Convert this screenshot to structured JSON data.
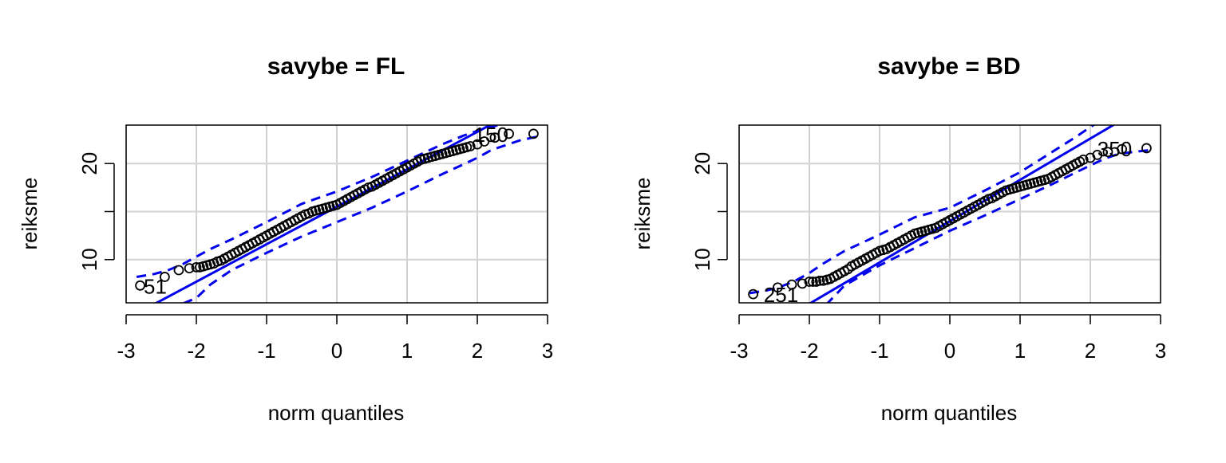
{
  "chart_data": [
    {
      "type": "scatter",
      "subtype": "qq-plot",
      "title": "savybe = FL",
      "xlabel": "norm quantiles",
      "ylabel": "reiksme",
      "xlim": [
        -3,
        3
      ],
      "ylim": [
        5.5,
        24
      ],
      "x_ticks": [
        "-3",
        "-2",
        "-1",
        "0",
        "1",
        "2",
        "3"
      ],
      "y_ticks": [
        "10",
        "20"
      ],
      "grid": true,
      "reference_line": {
        "intercept": 15.5,
        "slope": 3.9
      },
      "envelope": {
        "x": [
          -2.85,
          -2.6,
          -2.4,
          -2.2,
          -2.0,
          -1.8,
          -1.5,
          -1.0,
          -0.5,
          0.0,
          0.5,
          1.0,
          1.5,
          1.8,
          2.0,
          2.2,
          2.4,
          2.6,
          2.85
        ],
        "upper": [
          8.2,
          8.5,
          8.9,
          9.5,
          10.3,
          11.1,
          12.1,
          13.9,
          15.8,
          17.1,
          18.6,
          20.3,
          22.0,
          22.9,
          23.4,
          23.8,
          24.2,
          24.6,
          25.0
        ],
        "lower": [
          5.4,
          5.0,
          4.9,
          5.4,
          6.0,
          7.4,
          8.9,
          10.7,
          12.4,
          13.9,
          15.4,
          17.1,
          18.9,
          19.9,
          20.6,
          21.4,
          21.9,
          22.4,
          22.8
        ]
      },
      "points": {
        "x": [
          -2.8,
          -2.45,
          -2.25,
          -2.1,
          -2.0,
          -1.95,
          -1.9,
          -1.85,
          -1.8,
          -1.75,
          -1.7,
          -1.65,
          -1.6,
          -1.55,
          -1.5,
          -1.45,
          -1.4,
          -1.35,
          -1.3,
          -1.25,
          -1.2,
          -1.15,
          -1.1,
          -1.05,
          -1.0,
          -0.95,
          -0.9,
          -0.85,
          -0.8,
          -0.75,
          -0.7,
          -0.65,
          -0.6,
          -0.55,
          -0.5,
          -0.45,
          -0.4,
          -0.35,
          -0.3,
          -0.25,
          -0.2,
          -0.15,
          -0.1,
          -0.05,
          0.0,
          0.05,
          0.1,
          0.15,
          0.2,
          0.25,
          0.3,
          0.35,
          0.4,
          0.45,
          0.5,
          0.55,
          0.6,
          0.65,
          0.7,
          0.75,
          0.8,
          0.85,
          0.9,
          0.95,
          1.0,
          1.05,
          1.1,
          1.15,
          1.2,
          1.25,
          1.3,
          1.35,
          1.4,
          1.45,
          1.5,
          1.55,
          1.6,
          1.65,
          1.7,
          1.75,
          1.8,
          1.85,
          1.9,
          2.0,
          2.1,
          2.25,
          2.45,
          2.8
        ],
        "y": [
          7.3,
          8.2,
          8.9,
          9.1,
          9.2,
          9.2,
          9.3,
          9.4,
          9.5,
          9.6,
          9.8,
          9.9,
          10.1,
          10.3,
          10.5,
          10.7,
          10.9,
          11.1,
          11.3,
          11.5,
          11.7,
          11.9,
          12.1,
          12.3,
          12.5,
          12.7,
          12.9,
          13.1,
          13.3,
          13.5,
          13.7,
          13.9,
          14.1,
          14.3,
          14.5,
          14.7,
          14.8,
          15.0,
          15.1,
          15.2,
          15.3,
          15.4,
          15.5,
          15.6,
          15.7,
          15.9,
          16.1,
          16.3,
          16.5,
          16.7,
          16.9,
          17.1,
          17.3,
          17.5,
          17.6,
          17.8,
          18.0,
          18.2,
          18.4,
          18.6,
          18.8,
          19.0,
          19.2,
          19.4,
          19.6,
          19.8,
          20.0,
          20.2,
          20.4,
          20.5,
          20.6,
          20.7,
          20.8,
          20.9,
          21.0,
          21.1,
          21.2,
          21.3,
          21.4,
          21.5,
          21.6,
          21.7,
          21.8,
          22.0,
          22.3,
          22.7,
          23.1,
          23.1
        ]
      },
      "annotations": [
        {
          "text": "51",
          "x": -2.75,
          "y": 7.3
        },
        {
          "text": "150",
          "x": 1.95,
          "y": 23.1
        }
      ]
    },
    {
      "type": "scatter",
      "subtype": "qq-plot",
      "title": "savybe = BD",
      "xlabel": "norm quantiles",
      "ylabel": "reiksme",
      "xlim": [
        -3,
        3
      ],
      "ylim": [
        5.5,
        24
      ],
      "x_ticks": [
        "-3",
        "-2",
        "-1",
        "0",
        "1",
        "2",
        "3"
      ],
      "y_ticks": [
        "10",
        "20"
      ],
      "grid": true,
      "reference_line": {
        "intercept": 14.0,
        "slope": 4.3
      },
      "envelope": {
        "x": [
          -2.85,
          -2.6,
          -2.4,
          -2.2,
          -2.0,
          -1.8,
          -1.5,
          -1.0,
          -0.5,
          0.0,
          0.5,
          1.0,
          1.5,
          1.8,
          2.0,
          2.2,
          2.4,
          2.6,
          2.85
        ],
        "upper": [
          6.5,
          6.8,
          7.2,
          7.8,
          8.6,
          9.6,
          10.9,
          12.6,
          14.4,
          15.4,
          17.2,
          19.1,
          21.4,
          22.8,
          23.8,
          24.7,
          25.6,
          26.5,
          27.6
        ],
        "lower": [
          4.4,
          3.9,
          3.8,
          4.2,
          4.6,
          5.0,
          7.3,
          9.4,
          11.2,
          13.0,
          14.6,
          16.3,
          18.0,
          19.1,
          19.8,
          20.5,
          21.0,
          21.2,
          21.4
        ]
      },
      "points": {
        "x": [
          -2.8,
          -2.45,
          -2.25,
          -2.1,
          -2.0,
          -1.95,
          -1.9,
          -1.85,
          -1.8,
          -1.75,
          -1.7,
          -1.65,
          -1.6,
          -1.55,
          -1.5,
          -1.45,
          -1.4,
          -1.35,
          -1.3,
          -1.25,
          -1.2,
          -1.15,
          -1.1,
          -1.05,
          -1.0,
          -0.95,
          -0.9,
          -0.85,
          -0.8,
          -0.75,
          -0.7,
          -0.65,
          -0.6,
          -0.55,
          -0.5,
          -0.45,
          -0.4,
          -0.35,
          -0.3,
          -0.25,
          -0.2,
          -0.15,
          -0.1,
          -0.05,
          0.0,
          0.05,
          0.1,
          0.15,
          0.2,
          0.25,
          0.3,
          0.35,
          0.4,
          0.45,
          0.5,
          0.55,
          0.6,
          0.65,
          0.7,
          0.75,
          0.8,
          0.85,
          0.9,
          0.95,
          1.0,
          1.05,
          1.1,
          1.15,
          1.2,
          1.25,
          1.3,
          1.35,
          1.4,
          1.45,
          1.5,
          1.55,
          1.6,
          1.65,
          1.7,
          1.75,
          1.8,
          1.85,
          1.9,
          2.0,
          2.1,
          2.25,
          2.45,
          2.8
        ],
        "y": [
          6.4,
          7.1,
          7.4,
          7.5,
          7.7,
          7.7,
          7.7,
          7.8,
          7.8,
          7.9,
          8.0,
          8.2,
          8.4,
          8.6,
          8.8,
          9.0,
          9.3,
          9.5,
          9.7,
          9.9,
          10.1,
          10.3,
          10.5,
          10.7,
          10.9,
          11.0,
          11.1,
          11.3,
          11.5,
          11.7,
          11.9,
          12.1,
          12.3,
          12.5,
          12.7,
          12.8,
          12.9,
          13.0,
          13.1,
          13.2,
          13.3,
          13.5,
          13.7,
          13.9,
          14.1,
          14.3,
          14.5,
          14.7,
          14.9,
          15.1,
          15.3,
          15.5,
          15.7,
          15.9,
          16.1,
          16.3,
          16.4,
          16.6,
          16.8,
          17.0,
          17.2,
          17.3,
          17.4,
          17.5,
          17.6,
          17.7,
          17.8,
          17.9,
          18.0,
          18.1,
          18.2,
          18.3,
          18.4,
          18.6,
          18.8,
          19.0,
          19.2,
          19.4,
          19.6,
          19.8,
          20.0,
          20.2,
          20.4,
          20.6,
          20.9,
          21.2,
          21.5,
          21.6
        ]
      },
      "annotations": [
        {
          "text": "251",
          "x": -2.65,
          "y": 6.4
        },
        {
          "text": "350",
          "x": 2.1,
          "y": 21.6
        }
      ]
    }
  ],
  "colors": {
    "points": "#000000",
    "reference_line": "#0000ee",
    "envelope": "#0000ee",
    "grid": "#d3d3d3"
  }
}
